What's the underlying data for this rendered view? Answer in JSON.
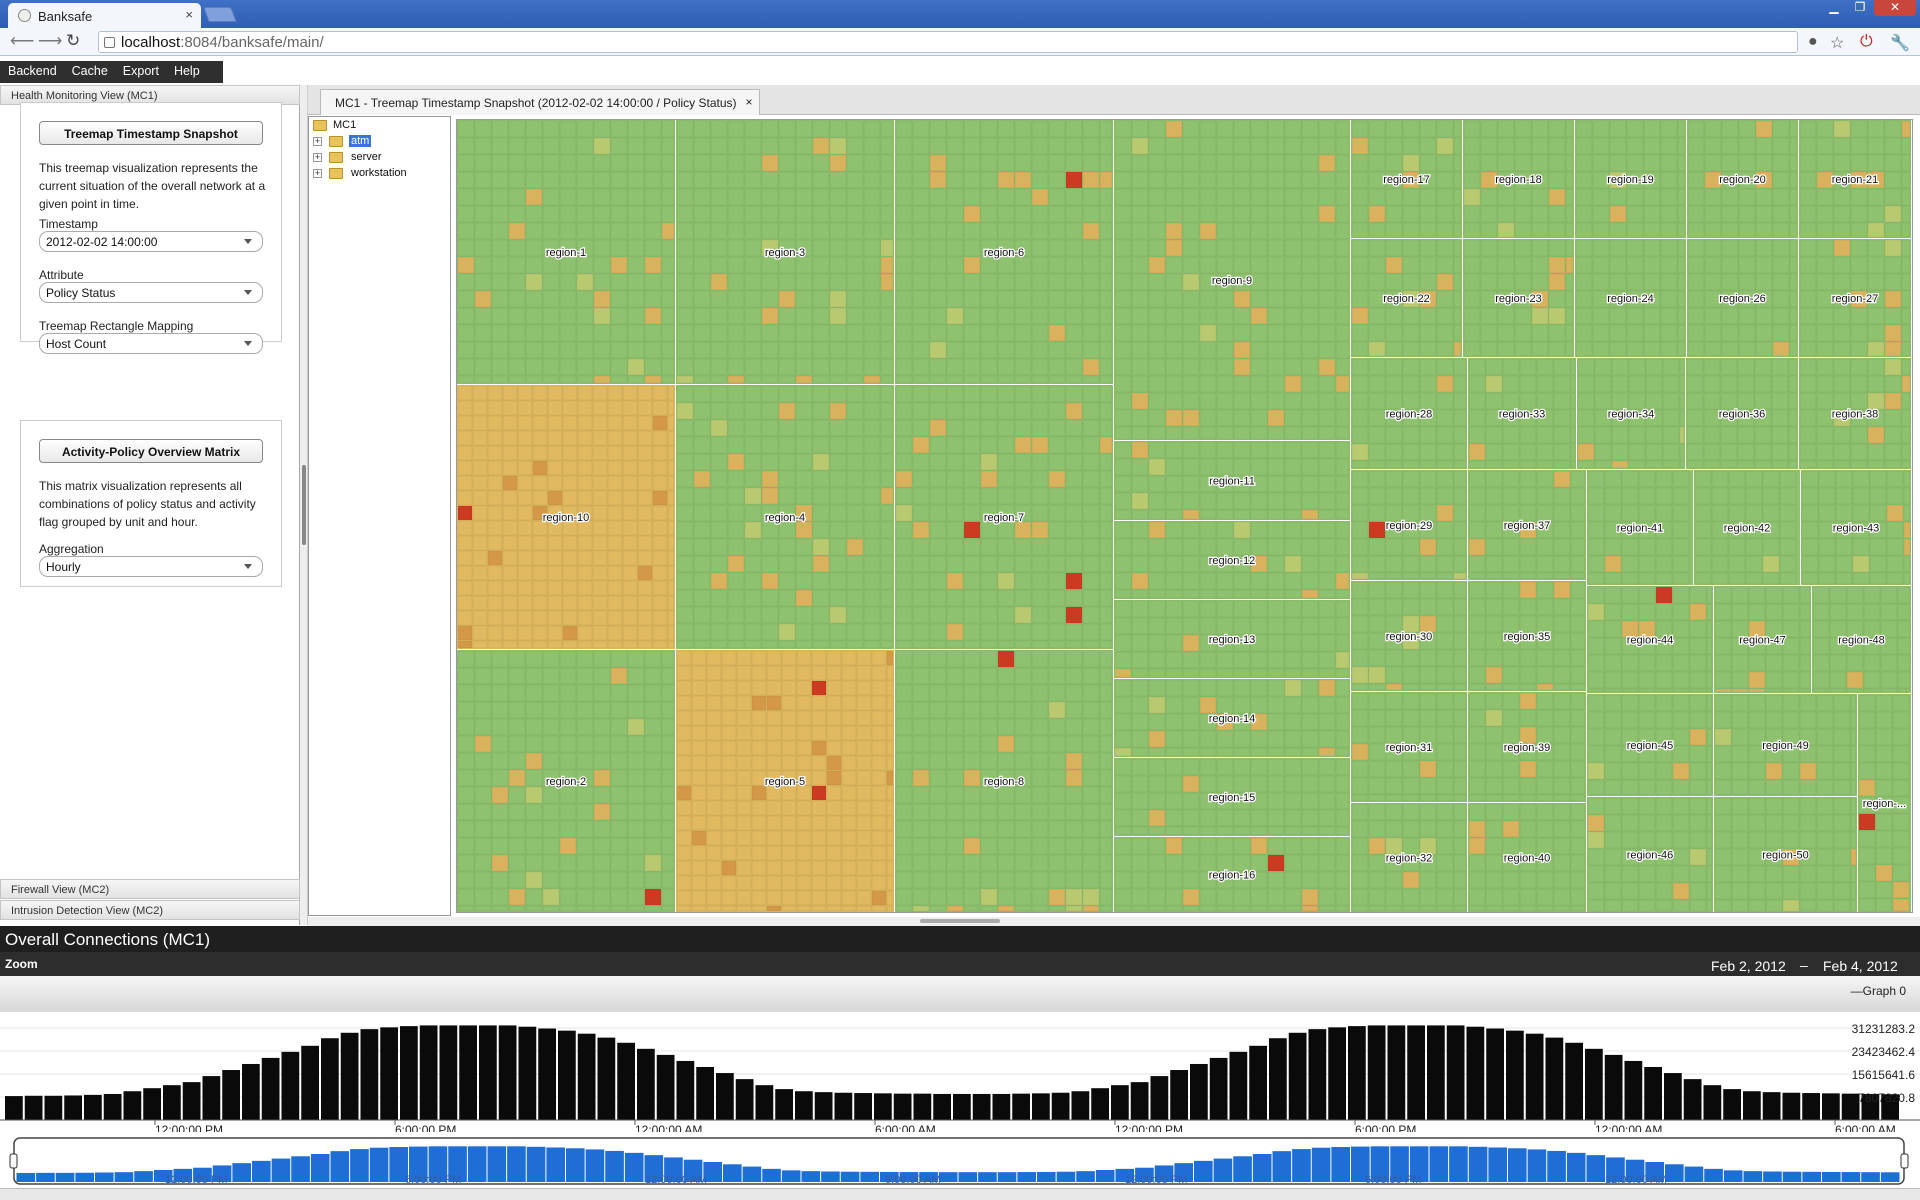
{
  "browser": {
    "tab_title": "Banksafe",
    "tab_close": "×",
    "url_host": "localhost",
    "url_rest": ":8084/banksafe/main/"
  },
  "menu": [
    "Backend",
    "Cache",
    "Export",
    "Help"
  ],
  "left_panel": {
    "header": "Health Monitoring View (MC1)",
    "treemap_card": {
      "button": "Treemap Timestamp Snapshot",
      "description": "This treemap visualization represents the current situation of the overall network at a given point in time.",
      "timestamp_label": "Timestamp",
      "timestamp_value": "2012-02-02 14:00:00",
      "attribute_label": "Attribute",
      "attribute_value": "Policy Status",
      "mapping_label": "Treemap Rectangle Mapping",
      "mapping_value": "Host Count"
    },
    "matrix_card": {
      "button": "Activity-Policy Overview Matrix",
      "description": "This matrix visualization represents all combinations of policy status and activity flag grouped by unit and hour.",
      "aggregation_label": "Aggregation",
      "aggregation_value": "Hourly"
    },
    "footer_headers": [
      "Firewall View (MC2)",
      "Intrusion Detection View (MC2)"
    ]
  },
  "main_tab": {
    "label": "MC1 - Treemap Timestamp Snapshot (2012-02-02 14:00:00 / Policy Status)",
    "close": "×"
  },
  "tree": {
    "root": "MC1",
    "children": [
      "atm",
      "server",
      "workstation"
    ],
    "selected": "atm"
  },
  "treemap": {
    "colors": {
      "ok": "#8fc26f",
      "warn": "#e0b960",
      "bad": "#cc3a22",
      "separator": "#ffffff"
    },
    "regions": [
      {
        "label": "region-1",
        "status": "ok"
      },
      {
        "label": "region-3",
        "status": "ok"
      },
      {
        "label": "region-6",
        "status": "ok"
      },
      {
        "label": "region-9",
        "status": "ok"
      },
      {
        "label": "region-17",
        "status": "ok"
      },
      {
        "label": "region-18",
        "status": "ok"
      },
      {
        "label": "region-19",
        "status": "ok"
      },
      {
        "label": "region-20",
        "status": "ok"
      },
      {
        "label": "region-21",
        "status": "ok"
      },
      {
        "label": "region-22",
        "status": "ok"
      },
      {
        "label": "region-23",
        "status": "ok"
      },
      {
        "label": "region-24",
        "status": "ok"
      },
      {
        "label": "region-26",
        "status": "ok"
      },
      {
        "label": "region-27",
        "status": "ok"
      },
      {
        "label": "region-10",
        "status": "warn"
      },
      {
        "label": "region-4",
        "status": "ok"
      },
      {
        "label": "region-7",
        "status": "ok"
      },
      {
        "label": "region-11",
        "status": "ok"
      },
      {
        "label": "region-28",
        "status": "ok"
      },
      {
        "label": "region-33",
        "status": "ok"
      },
      {
        "label": "region-34",
        "status": "ok"
      },
      {
        "label": "region-36",
        "status": "ok"
      },
      {
        "label": "region-38",
        "status": "ok"
      },
      {
        "label": "region-12",
        "status": "ok"
      },
      {
        "label": "region-29",
        "status": "ok"
      },
      {
        "label": "region-37",
        "status": "ok"
      },
      {
        "label": "region-41",
        "status": "ok"
      },
      {
        "label": "region-42",
        "status": "ok"
      },
      {
        "label": "region-43",
        "status": "ok"
      },
      {
        "label": "region-13",
        "status": "ok"
      },
      {
        "label": "region-30",
        "status": "ok"
      },
      {
        "label": "region-35",
        "status": "ok"
      },
      {
        "label": "region-44",
        "status": "ok"
      },
      {
        "label": "region-47",
        "status": "ok"
      },
      {
        "label": "region-48",
        "status": "ok"
      },
      {
        "label": "region-2",
        "status": "ok"
      },
      {
        "label": "region-5",
        "status": "warn"
      },
      {
        "label": "region-8",
        "status": "ok"
      },
      {
        "label": "region-14",
        "status": "ok"
      },
      {
        "label": "region-31",
        "status": "ok"
      },
      {
        "label": "region-39",
        "status": "ok"
      },
      {
        "label": "region-45",
        "status": "ok"
      },
      {
        "label": "region-49",
        "status": "ok"
      },
      {
        "label": "region-15",
        "status": "ok"
      },
      {
        "label": "region-...",
        "status": "ok"
      },
      {
        "label": "region-16",
        "status": "ok"
      },
      {
        "label": "region-32",
        "status": "ok"
      },
      {
        "label": "region-40",
        "status": "ok"
      },
      {
        "label": "region-46",
        "status": "ok"
      },
      {
        "label": "region-50",
        "status": "ok"
      }
    ]
  },
  "graph": {
    "title": "Overall Connections (MC1)",
    "zoom_label": "Zoom",
    "date_from": "Feb 2, 2012",
    "date_sep": "–",
    "date_to": "Feb 4, 2012",
    "legend": "—Graph 0",
    "bar_color": "#0a0a0a",
    "nav_color": "#1f6ed6",
    "y_ticks": [
      "31231283.2",
      "23423462.4",
      "15615641.6",
      "7807820.8"
    ],
    "x_ticks": [
      "12:00:00 PM",
      "6:00:00 PM",
      "12:00:00 AM",
      "6:00:00 AM",
      "12:00:00 PM",
      "6:00:00 PM",
      "12:00:00 AM",
      "6:00:00 AM"
    ],
    "nav_ticks": [
      "12:00:00 PM",
      "6:00:00 PM",
      "12:00:00 AM",
      "6:00:00 AM",
      "12:00:00 PM",
      "6:00:00 PM",
      "12:00:00 AM"
    ]
  },
  "chart_data": {
    "type": "bar",
    "title": "Overall Connections (MC1)",
    "xlabel": "",
    "ylabel": "",
    "ylim": [
      0,
      35000000
    ],
    "x_range": [
      "Feb 2, 2012",
      "Feb 4, 2012"
    ],
    "series": [
      {
        "name": "Graph 0",
        "values": [
          7900000,
          8000000,
          8000000,
          8100000,
          8300000,
          8600000,
          9500000,
          10500000,
          11500000,
          12500000,
          14500000,
          16500000,
          18500000,
          20500000,
          22500000,
          24500000,
          27000000,
          28800000,
          30000000,
          30600000,
          31000000,
          31230000,
          31230000,
          31230000,
          31230000,
          31230000,
          30800000,
          30200000,
          29500000,
          28500000,
          27200000,
          25500000,
          23500000,
          21500000,
          19500000,
          17500000,
          15500000,
          13500000,
          11500000,
          10200000,
          9500000,
          9200000,
          9000000,
          8900000,
          8800000,
          8700000,
          8700000,
          8600000,
          8600000,
          8600000,
          8600000,
          8700000,
          8800000,
          9000000,
          9500000,
          10500000,
          11500000,
          12500000,
          14500000,
          16500000,
          18500000,
          20500000,
          22500000,
          24500000,
          27000000,
          28800000,
          30000000,
          30600000,
          31000000,
          31230000,
          31230000,
          31230000,
          31230000,
          31230000,
          30800000,
          30200000,
          29500000,
          28500000,
          27200000,
          25500000,
          23500000,
          21500000,
          19500000,
          17500000,
          15500000,
          13500000,
          11500000,
          10200000,
          9500000,
          9200000,
          9000000,
          8900000,
          8800000,
          8700000,
          8600000,
          8500000
        ]
      }
    ]
  }
}
